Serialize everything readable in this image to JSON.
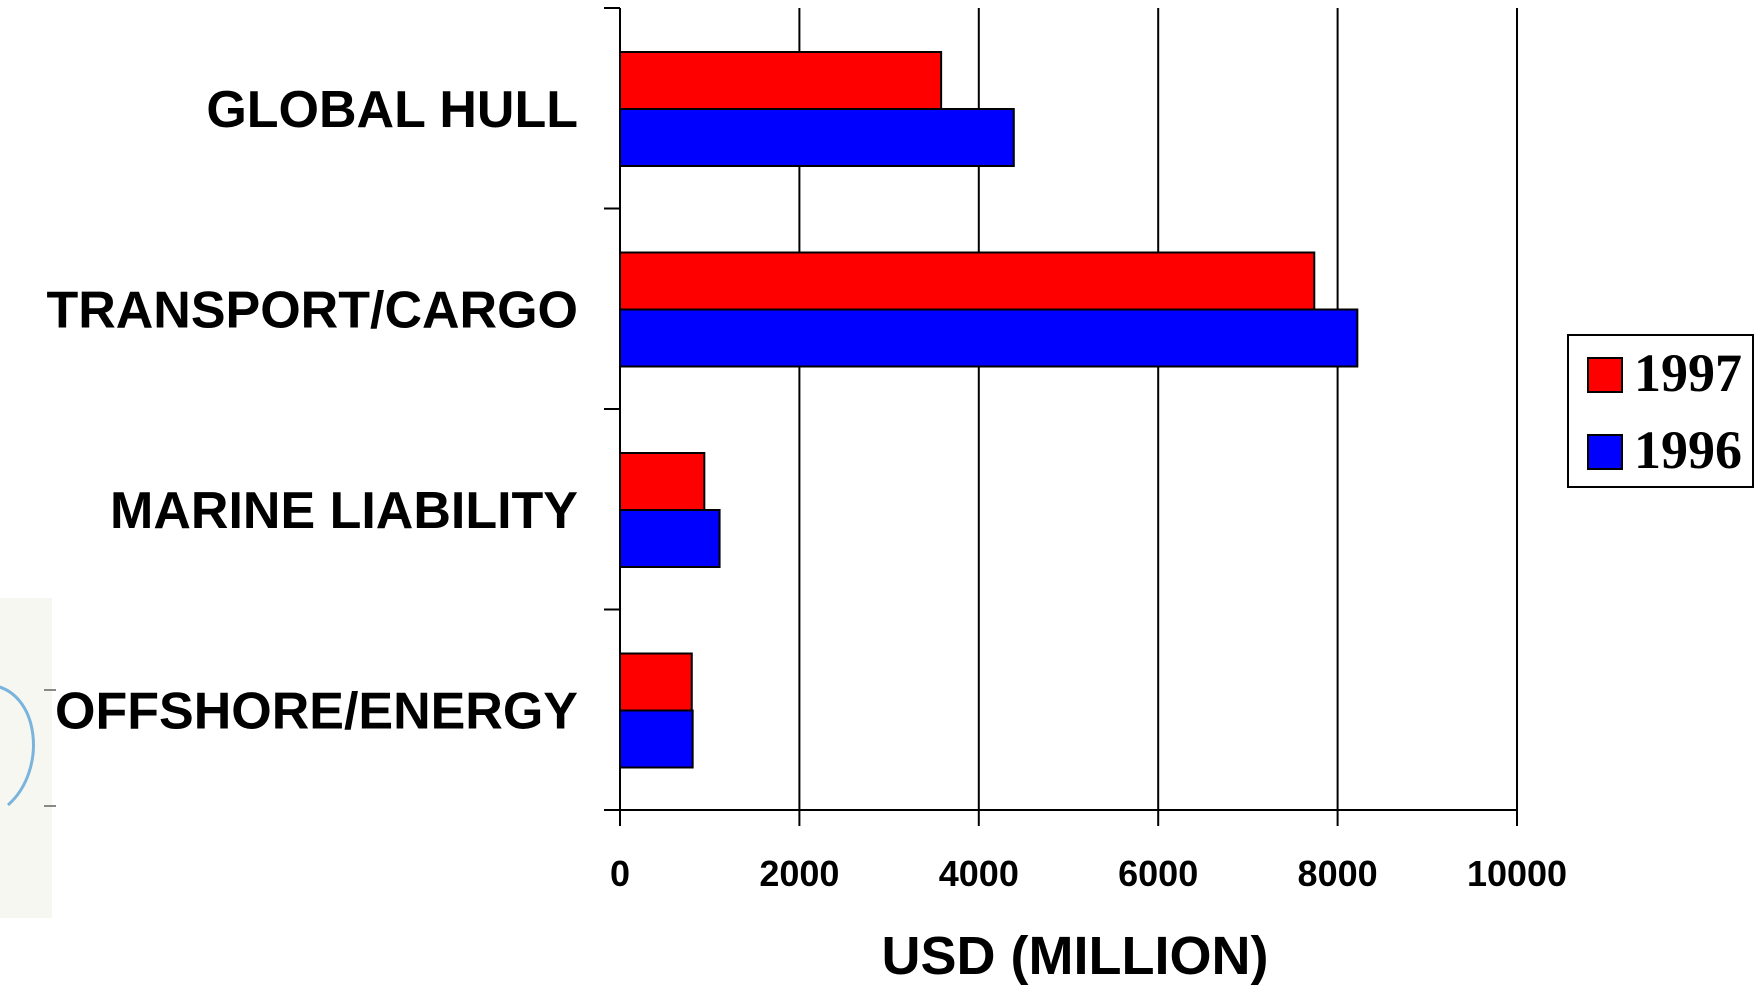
{
  "chart_data": {
    "type": "bar",
    "orientation": "horizontal",
    "categories": [
      "GLOBAL HULL",
      "TRANSPORT/CARGO",
      "MARINE LIABILITY",
      "OFFSHORE/ENERGY"
    ],
    "series": [
      {
        "name": "1997",
        "values": [
          3580,
          7740,
          940,
          800
        ],
        "color": "#ff0000"
      },
      {
        "name": "1996",
        "values": [
          4390,
          8220,
          1110,
          810
        ],
        "color": "#0000ff"
      }
    ],
    "x_ticks": [
      "0",
      "2000",
      "4000",
      "6000",
      "8000",
      "10000"
    ],
    "xlabel": "USD (MILLION)",
    "ylabel": "",
    "title": "",
    "xlim": [
      0,
      10000
    ],
    "grid": true,
    "legend_position": "right"
  }
}
